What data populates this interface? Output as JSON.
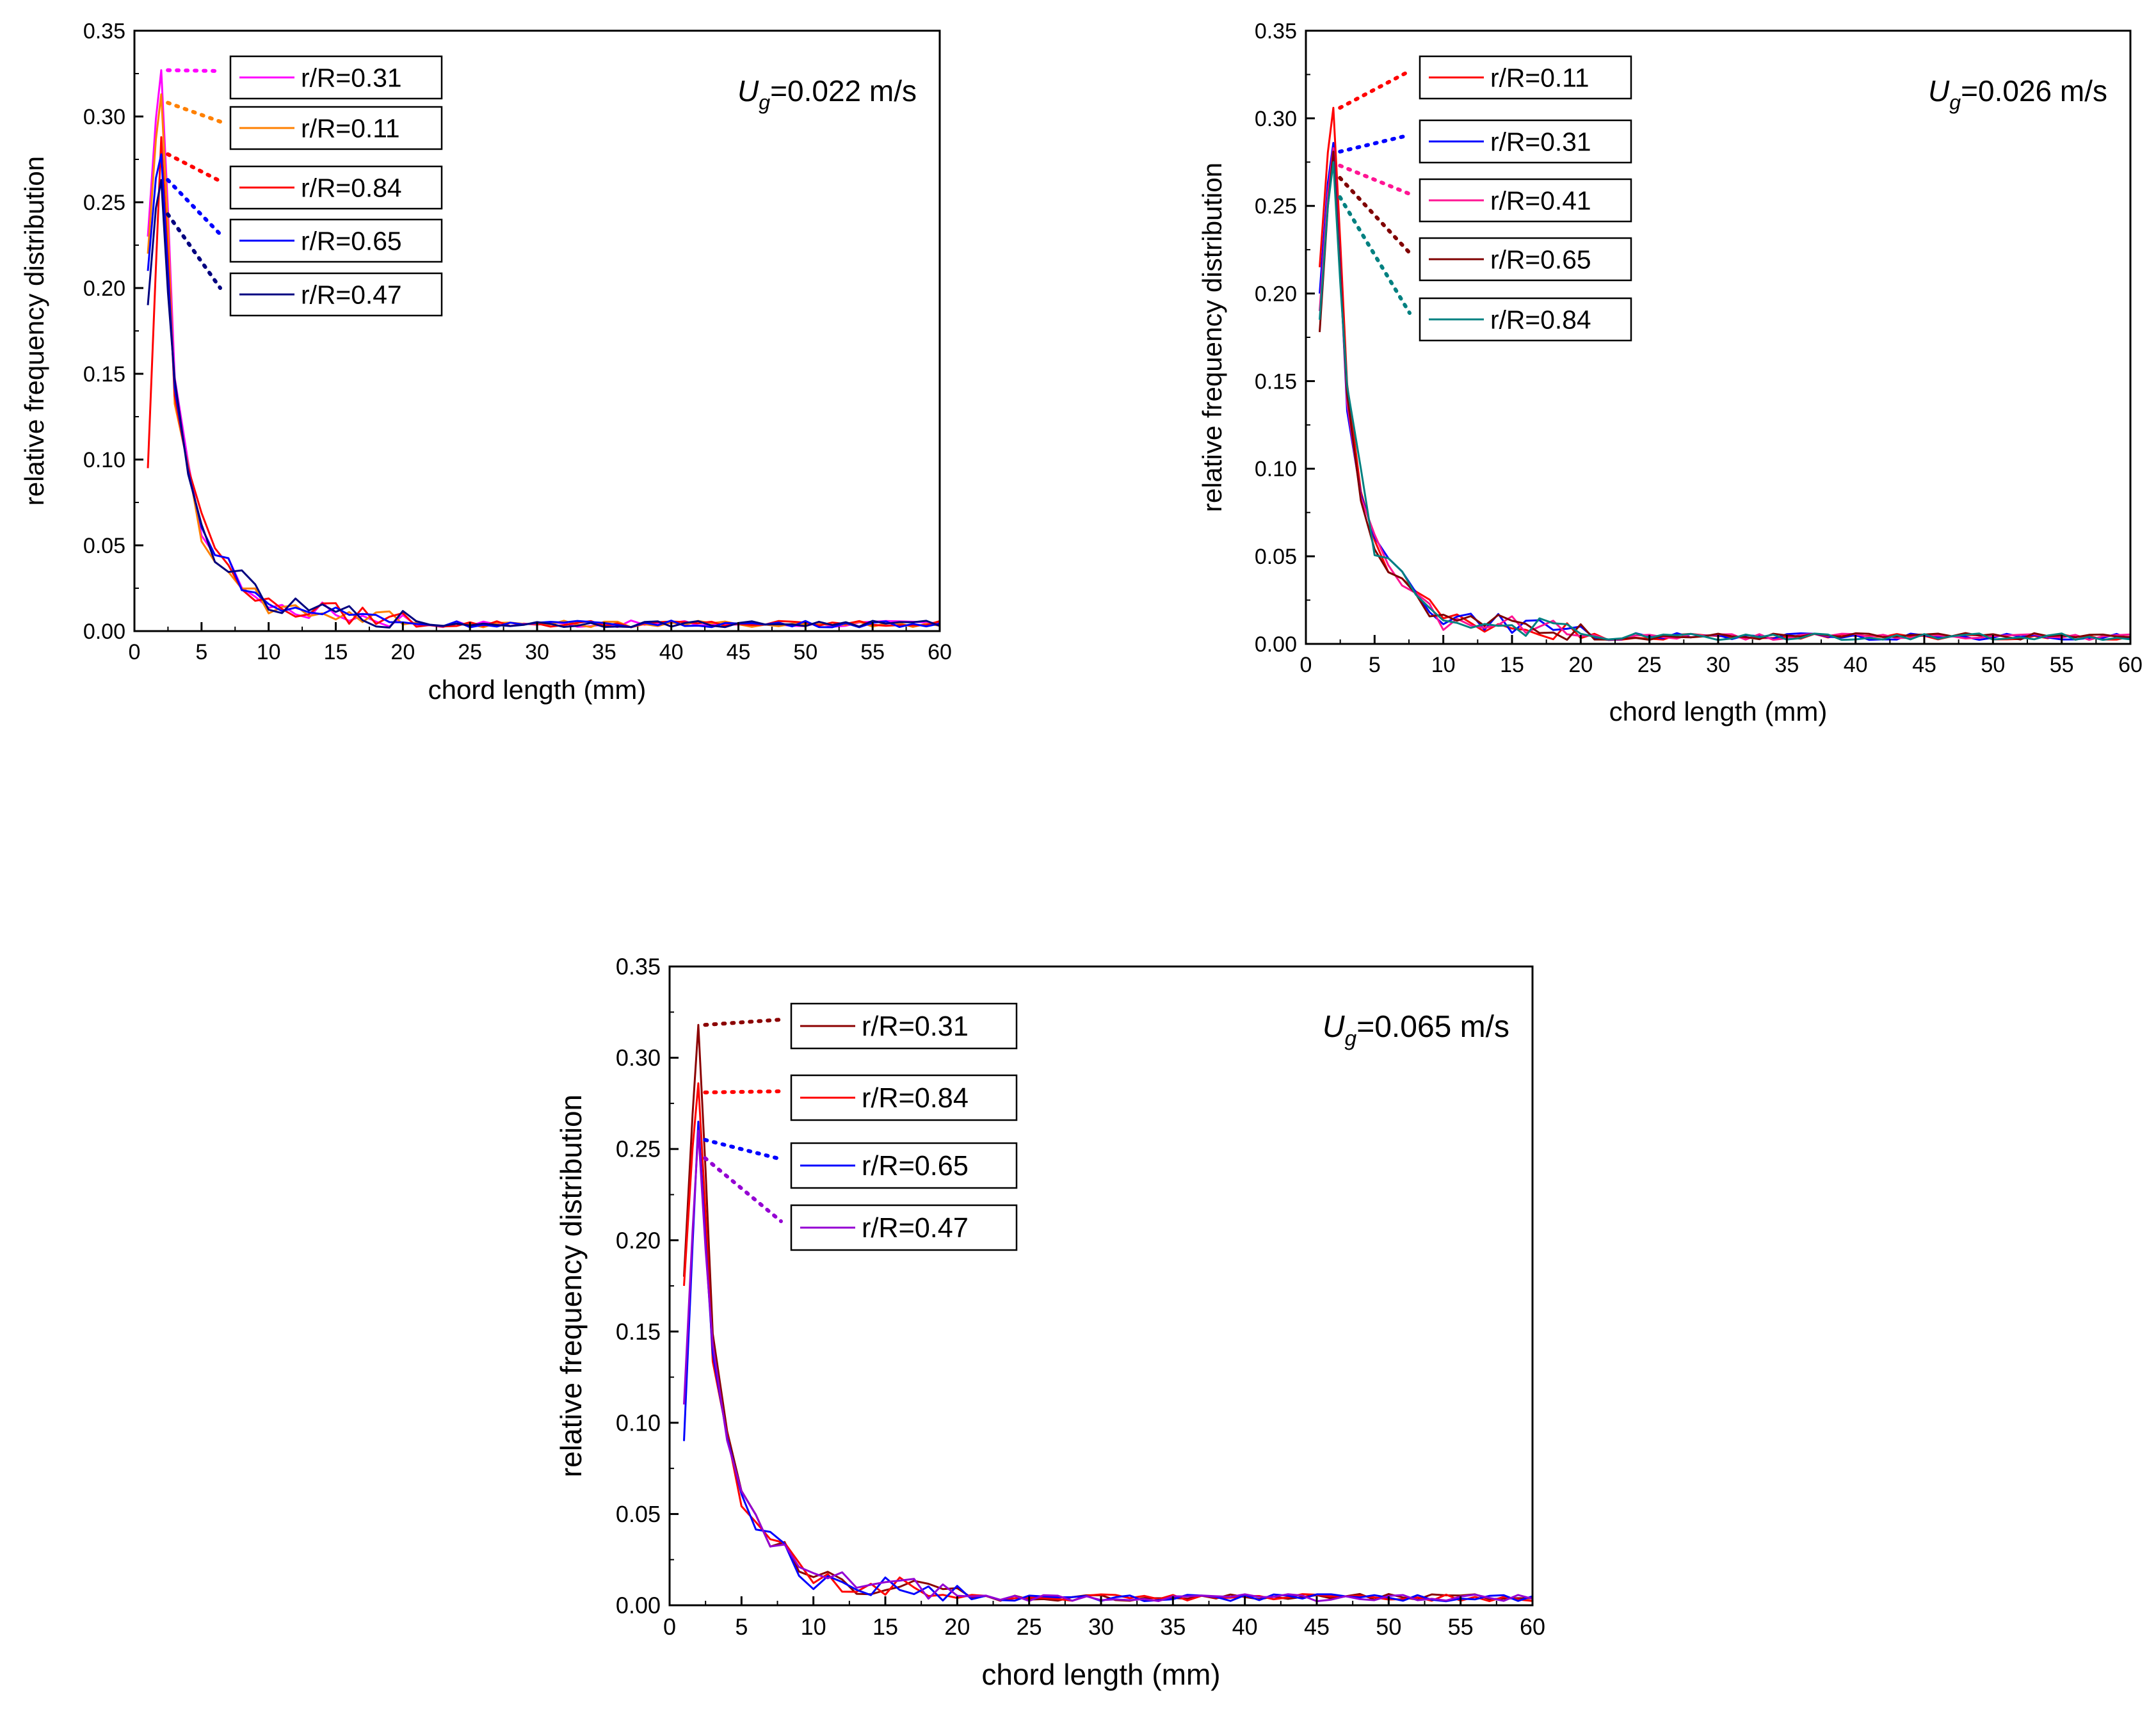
{
  "chart_data": [
    {
      "type": "line",
      "annotation": {
        "symbol": "U",
        "subscript": "g",
        "text": "=0.022 m/s"
      },
      "xlabel": "chord length (mm)",
      "ylabel": "relative frequency distribution",
      "xlim": [
        0,
        60
      ],
      "ylim": [
        0,
        0.35
      ],
      "xticks": [
        "0",
        "5",
        "10",
        "15",
        "20",
        "25",
        "30",
        "35",
        "40",
        "45",
        "50",
        "55",
        "60"
      ],
      "yticks": [
        "0.00",
        "0.05",
        "0.10",
        "0.15",
        "0.20",
        "0.25",
        "0.30",
        "0.35"
      ],
      "grid": false,
      "series": [
        {
          "name": "r/R=0.31",
          "color": "#ff00ff",
          "peak": 0.327,
          "start": 0.23,
          "tail": 0.06
        },
        {
          "name": "r/R=0.11",
          "color": "#ff8000",
          "peak": 0.313,
          "start": 0.22,
          "tail": 0.05
        },
        {
          "name": "r/R=0.84",
          "color": "#ff0000",
          "peak": 0.288,
          "start": 0.095,
          "tail": 0.07
        },
        {
          "name": "r/R=0.65",
          "color": "#0000ff",
          "peak": 0.278,
          "start": 0.21,
          "tail": 0.065
        },
        {
          "name": "r/R=0.47",
          "color": "#000080",
          "peak": 0.263,
          "start": 0.19,
          "tail": 0.06
        }
      ]
    },
    {
      "type": "line",
      "annotation": {
        "symbol": "U",
        "subscript": "g",
        "text": "=0.026 m/s"
      },
      "xlabel": "chord length (mm)",
      "ylabel": "relative frequency distribution",
      "xlim": [
        0,
        60
      ],
      "ylim": [
        0,
        0.35
      ],
      "xticks": [
        "0",
        "5",
        "10",
        "15",
        "20",
        "25",
        "30",
        "35",
        "40",
        "45",
        "50",
        "55",
        "60"
      ],
      "yticks": [
        "0.00",
        "0.05",
        "0.10",
        "0.15",
        "0.20",
        "0.25",
        "0.30",
        "0.35"
      ],
      "grid": false,
      "series": [
        {
          "name": "r/R=0.11",
          "color": "#ff0000",
          "peak": 0.306,
          "start": 0.215,
          "tail": 0.06
        },
        {
          "name": "r/R=0.31",
          "color": "#0000ff",
          "peak": 0.286,
          "start": 0.2,
          "tail": 0.065
        },
        {
          "name": "r/R=0.41",
          "color": "#ff1493",
          "peak": 0.283,
          "start": 0.19,
          "tail": 0.06
        },
        {
          "name": "r/R=0.65",
          "color": "#800000",
          "peak": 0.281,
          "start": 0.178,
          "tail": 0.055
        },
        {
          "name": "r/R=0.84",
          "color": "#008080",
          "peak": 0.275,
          "start": 0.185,
          "tail": 0.055
        }
      ]
    },
    {
      "type": "line",
      "annotation": {
        "symbol": "U",
        "subscript": "g",
        "text": "=0.065 m/s"
      },
      "xlabel": "chord length (mm)",
      "ylabel": "relative frequency distribution",
      "xlim": [
        0,
        60
      ],
      "ylim": [
        0,
        0.35
      ],
      "xticks": [
        "0",
        "5",
        "10",
        "15",
        "20",
        "25",
        "30",
        "35",
        "40",
        "45",
        "50",
        "55",
        "60"
      ],
      "yticks": [
        "0.00",
        "0.05",
        "0.10",
        "0.15",
        "0.20",
        "0.25",
        "0.30",
        "0.35"
      ],
      "grid": false,
      "series": [
        {
          "name": "r/R=0.31",
          "color": "#8b0000",
          "peak": 0.318,
          "start": 0.18,
          "tail": 0.06
        },
        {
          "name": "r/R=0.84",
          "color": "#ff0000",
          "peak": 0.286,
          "start": 0.175,
          "tail": 0.055
        },
        {
          "name": "r/R=0.65",
          "color": "#0000ff",
          "peak": 0.265,
          "start": 0.09,
          "tail": 0.065
        },
        {
          "name": "r/R=0.47",
          "color": "#9400d3",
          "peak": 0.26,
          "start": 0.11,
          "tail": 0.06
        }
      ]
    }
  ]
}
